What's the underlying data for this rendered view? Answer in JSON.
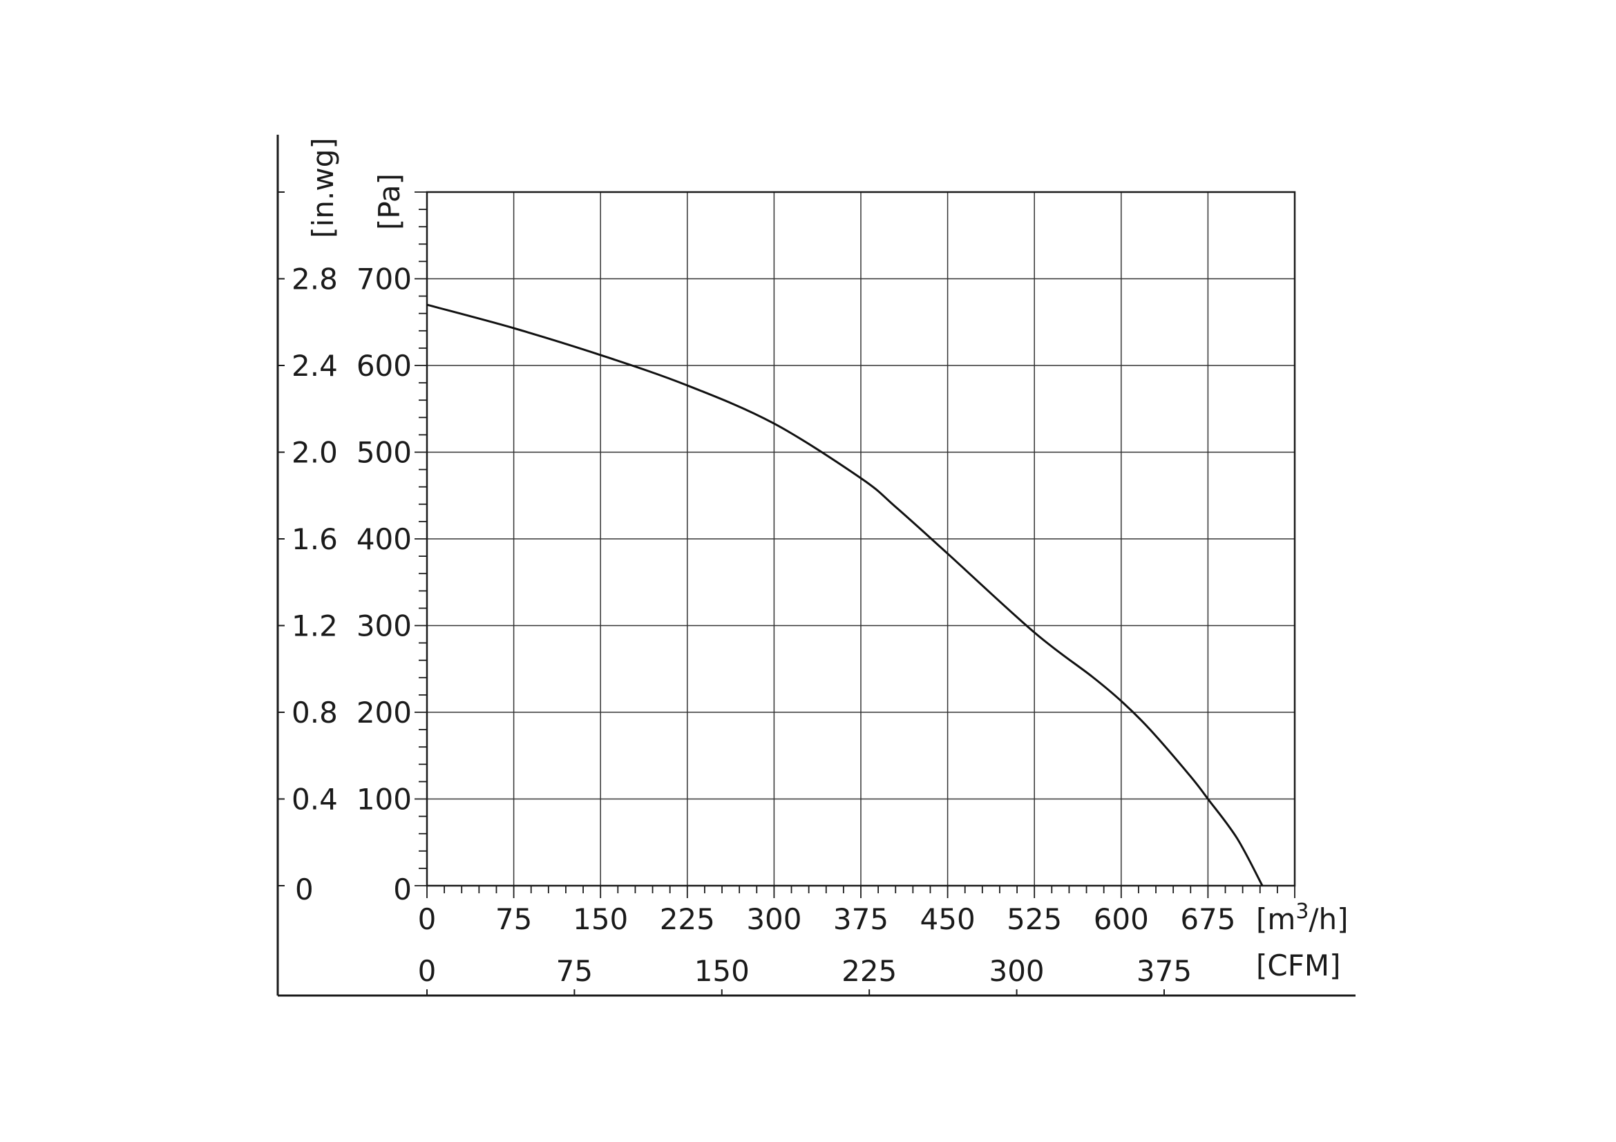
{
  "chart_data": {
    "type": "line",
    "title": "",
    "x_primary": {
      "unit_label_base": "[m",
      "unit_label_sup": "3",
      "unit_label_tail": "/h]",
      "range": [
        0,
        750
      ],
      "ticks": [
        "0",
        "75",
        "150",
        "225",
        "300",
        "375",
        "450",
        "525",
        "600",
        "675"
      ],
      "tick_values": [
        0,
        75,
        150,
        225,
        300,
        375,
        450,
        525,
        600,
        675
      ],
      "minor_step": 15
    },
    "x_secondary": {
      "unit_label": "[CFM]",
      "ticks": [
        "0",
        "75",
        "150",
        "225",
        "300",
        "375"
      ],
      "tick_values": [
        0,
        75,
        150,
        225,
        300,
        375
      ],
      "m3h_per_cfm": 1.699
    },
    "y_primary": {
      "unit_label": "[Pa]",
      "range": [
        0,
        800
      ],
      "ticks": [
        "0",
        "100",
        "200",
        "300",
        "400",
        "500",
        "600",
        "700"
      ],
      "tick_values": [
        0,
        100,
        200,
        300,
        400,
        500,
        600,
        700
      ],
      "minor_step": 20
    },
    "y_secondary": {
      "unit_label": "[in.wg]",
      "ticks": [
        "0",
        "0.4",
        "0.8",
        "1.2",
        "1.6",
        "2.0",
        "2.4",
        "2.8"
      ],
      "tick_values_pa": [
        0,
        100,
        200,
        300,
        400,
        500,
        600,
        700
      ]
    },
    "grid": true,
    "colors": {
      "line": "#111111",
      "grid": "#333333",
      "axis": "#1a1a1a"
    },
    "series": [
      {
        "values": [
          [
            0,
            670
          ],
          [
            75,
            643
          ],
          [
            150,
            612
          ],
          [
            225,
            577
          ],
          [
            300,
            533
          ],
          [
            375,
            470
          ],
          [
            405,
            437
          ],
          [
            450,
            383
          ],
          [
            525,
            292
          ],
          [
            575,
            241
          ],
          [
            600,
            213
          ],
          [
            625,
            180
          ],
          [
            660,
            126
          ],
          [
            675,
            100
          ],
          [
            700,
            55
          ],
          [
            722,
            0
          ]
        ]
      }
    ]
  }
}
